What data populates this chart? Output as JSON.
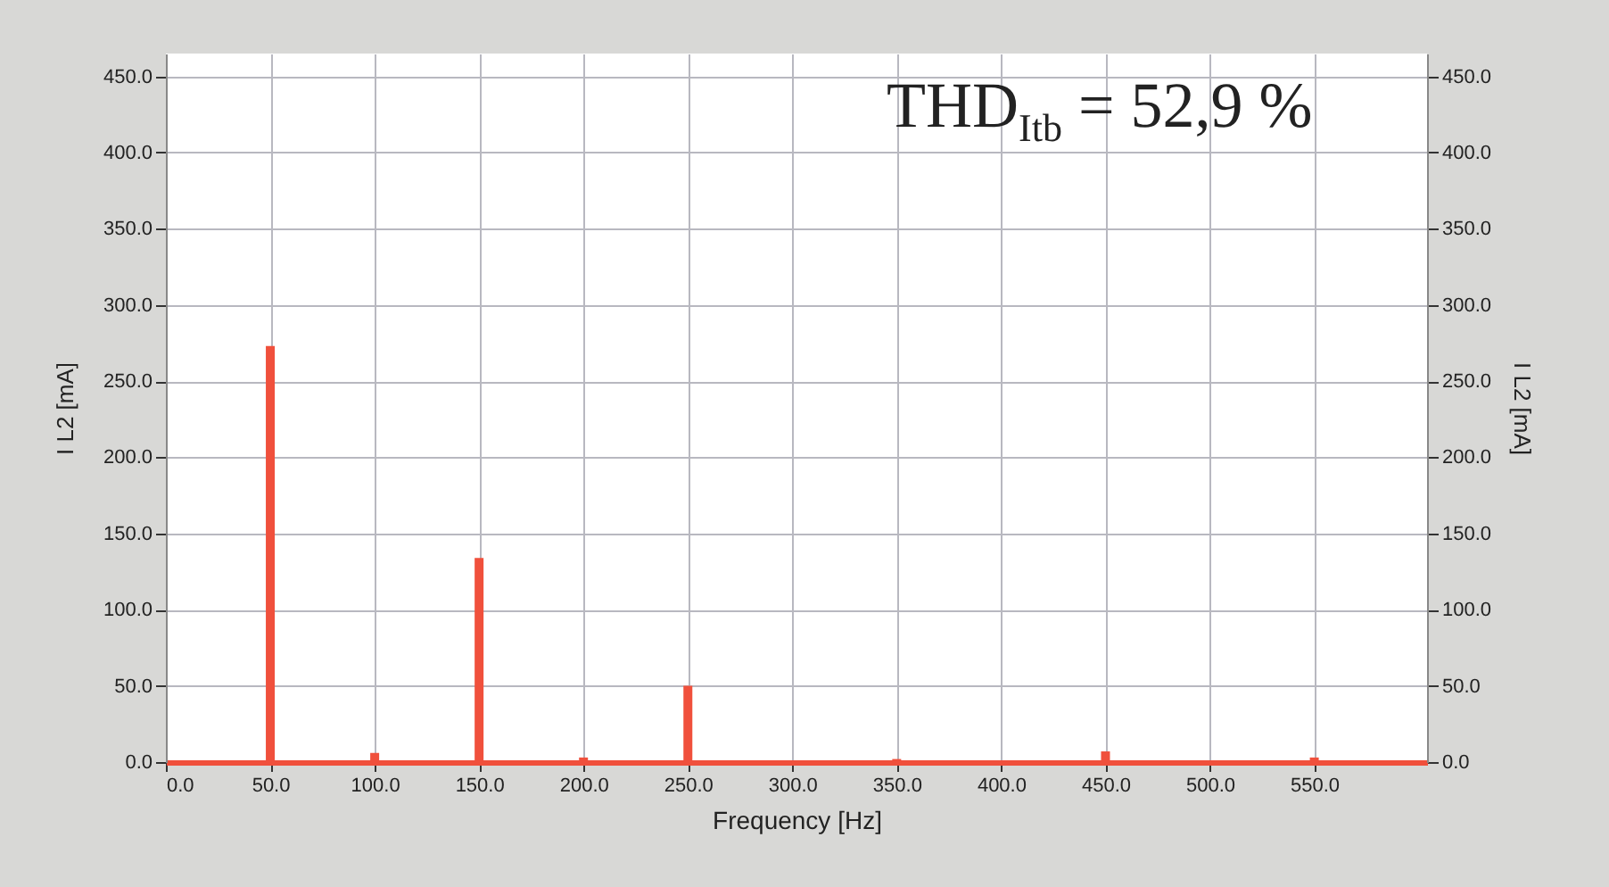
{
  "chart_data": {
    "type": "bar",
    "xlabel": "Frequency [Hz]",
    "ylabel": "I L2 [mA]",
    "y2label": "I L2 [mA]",
    "x": [
      50,
      100,
      150,
      200,
      250,
      350,
      450,
      550
    ],
    "series": [
      {
        "color": "#f0503c",
        "values": [
          273,
          6,
          134,
          3,
          50,
          2,
          7,
          3
        ]
      }
    ],
    "xlim": [
      0,
      604
    ],
    "xticks": [
      {
        "value": 0,
        "label": "0.0"
      },
      {
        "value": 50,
        "label": "50.0"
      },
      {
        "value": 100,
        "label": "100.0"
      },
      {
        "value": 150,
        "label": "150.0"
      },
      {
        "value": 200,
        "label": "200.0"
      },
      {
        "value": 250,
        "label": "250.0"
      },
      {
        "value": 300,
        "label": "300.0"
      },
      {
        "value": 350,
        "label": "350.0"
      },
      {
        "value": 400,
        "label": "400.0"
      },
      {
        "value": 450,
        "label": "450.0"
      },
      {
        "value": 500,
        "label": "500.0"
      },
      {
        "value": 550,
        "label": "550.0"
      }
    ],
    "ylim": [
      0,
      465
    ],
    "yticks": [
      {
        "value": 0,
        "label": "0.0"
      },
      {
        "value": 50,
        "label": "50.0"
      },
      {
        "value": 100,
        "label": "100.0"
      },
      {
        "value": 150,
        "label": "150.0"
      },
      {
        "value": 200,
        "label": "200.0"
      },
      {
        "value": 250,
        "label": "250.0"
      },
      {
        "value": 300,
        "label": "300.0"
      },
      {
        "value": 350,
        "label": "350.0"
      },
      {
        "value": 400,
        "label": "400.0"
      },
      {
        "value": 450,
        "label": "450.0"
      }
    ],
    "y2lim": [
      0,
      465
    ],
    "y2ticks": [
      {
        "value": 0,
        "label": "0.0"
      },
      {
        "value": 50,
        "label": "50.0"
      },
      {
        "value": 100,
        "label": "100.0"
      },
      {
        "value": 150,
        "label": "150.0"
      },
      {
        "value": 200,
        "label": "200.0"
      },
      {
        "value": 250,
        "label": "250.0"
      },
      {
        "value": 300,
        "label": "300.0"
      },
      {
        "value": 350,
        "label": "350.0"
      },
      {
        "value": 400,
        "label": "400.0"
      },
      {
        "value": 450,
        "label": "450.0"
      }
    ],
    "grid": true,
    "annotations": [
      "THD$_{Itb}$ = 52,9 %"
    ]
  }
}
